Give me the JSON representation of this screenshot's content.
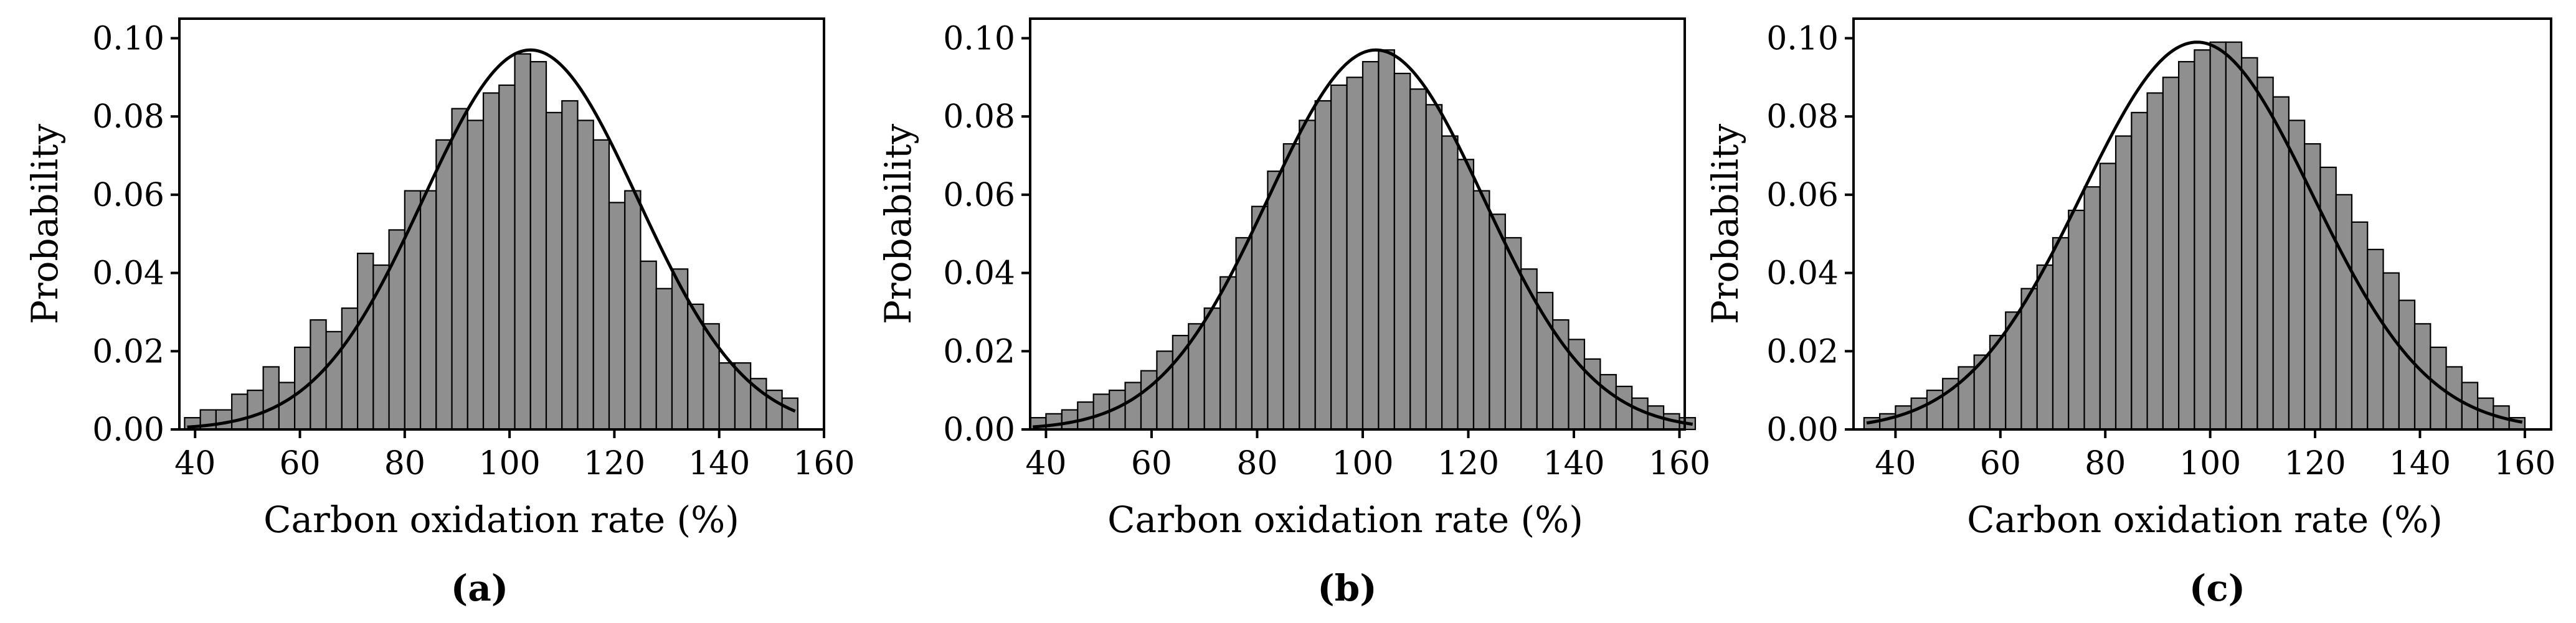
{
  "chart_data": [
    {
      "id": "a",
      "type": "bar",
      "caption": "(a)",
      "xlabel": "Carbon oxidation rate (%)",
      "ylabel": "Probability",
      "xlim": [
        37,
        160
      ],
      "ylim": [
        0,
        0.105
      ],
      "xticks": [
        40,
        60,
        80,
        100,
        120,
        140,
        160
      ],
      "yticks": [
        0.0,
        0.02,
        0.04,
        0.06,
        0.08,
        0.1
      ],
      "ytick_labels": [
        "0.00",
        "0.02",
        "0.04",
        "0.06",
        "0.08",
        "0.10"
      ],
      "bin_start": 38,
      "bin_width": 3,
      "values": [
        0.003,
        0.005,
        0.005,
        0.009,
        0.01,
        0.016,
        0.012,
        0.021,
        0.028,
        0.025,
        0.031,
        0.045,
        0.042,
        0.051,
        0.061,
        0.061,
        0.074,
        0.082,
        0.079,
        0.086,
        0.088,
        0.096,
        0.094,
        0.081,
        0.084,
        0.079,
        0.074,
        0.058,
        0.061,
        0.043,
        0.036,
        0.041,
        0.032,
        0.027,
        0.017,
        0.017,
        0.013,
        0.01,
        0.008
      ],
      "fit": {
        "mean": 104,
        "sd": 20.5,
        "peak": 0.097
      }
    },
    {
      "id": "b",
      "type": "bar",
      "caption": "(b)",
      "xlabel": "Carbon oxidation rate (%)",
      "ylabel": "Probability",
      "xlim": [
        37,
        161
      ],
      "ylim": [
        0,
        0.105
      ],
      "xticks": [
        40,
        60,
        80,
        100,
        120,
        140,
        160
      ],
      "yticks": [
        0.0,
        0.02,
        0.04,
        0.06,
        0.08,
        0.1
      ],
      "ytick_labels": [
        "0.00",
        "0.02",
        "0.04",
        "0.06",
        "0.08",
        "0.10"
      ],
      "bin_start": 37,
      "bin_width": 3,
      "values": [
        0.003,
        0.004,
        0.005,
        0.007,
        0.009,
        0.01,
        0.012,
        0.015,
        0.02,
        0.024,
        0.027,
        0.031,
        0.039,
        0.049,
        0.057,
        0.066,
        0.073,
        0.079,
        0.084,
        0.088,
        0.09,
        0.094,
        0.097,
        0.091,
        0.087,
        0.083,
        0.075,
        0.069,
        0.061,
        0.055,
        0.049,
        0.041,
        0.035,
        0.028,
        0.023,
        0.018,
        0.014,
        0.011,
        0.008,
        0.006,
        0.004,
        0.003
      ],
      "fit": {
        "mean": 102.5,
        "sd": 20.5,
        "peak": 0.097
      }
    },
    {
      "id": "c",
      "type": "bar",
      "caption": "(c)",
      "xlabel": "Carbon oxidation rate (%)",
      "ylabel": "Probability",
      "xlim": [
        32,
        165
      ],
      "ylim": [
        0,
        0.105
      ],
      "xticks": [
        40,
        60,
        80,
        100,
        120,
        140,
        160
      ],
      "yticks": [
        0.0,
        0.02,
        0.04,
        0.06,
        0.08,
        0.1
      ],
      "ytick_labels": [
        "0.00",
        "0.02",
        "0.04",
        "0.06",
        "0.08",
        "0.10"
      ],
      "bin_start": 34,
      "bin_width": 3,
      "values": [
        0.003,
        0.004,
        0.006,
        0.008,
        0.01,
        0.013,
        0.016,
        0.019,
        0.024,
        0.03,
        0.036,
        0.042,
        0.049,
        0.056,
        0.062,
        0.068,
        0.075,
        0.081,
        0.086,
        0.09,
        0.094,
        0.097,
        0.099,
        0.099,
        0.095,
        0.09,
        0.085,
        0.079,
        0.073,
        0.067,
        0.06,
        0.053,
        0.046,
        0.04,
        0.033,
        0.027,
        0.021,
        0.016,
        0.012,
        0.008,
        0.006,
        0.003
      ],
      "fit": {
        "mean": 97.5,
        "sd": 22,
        "peak": 0.099
      }
    }
  ]
}
